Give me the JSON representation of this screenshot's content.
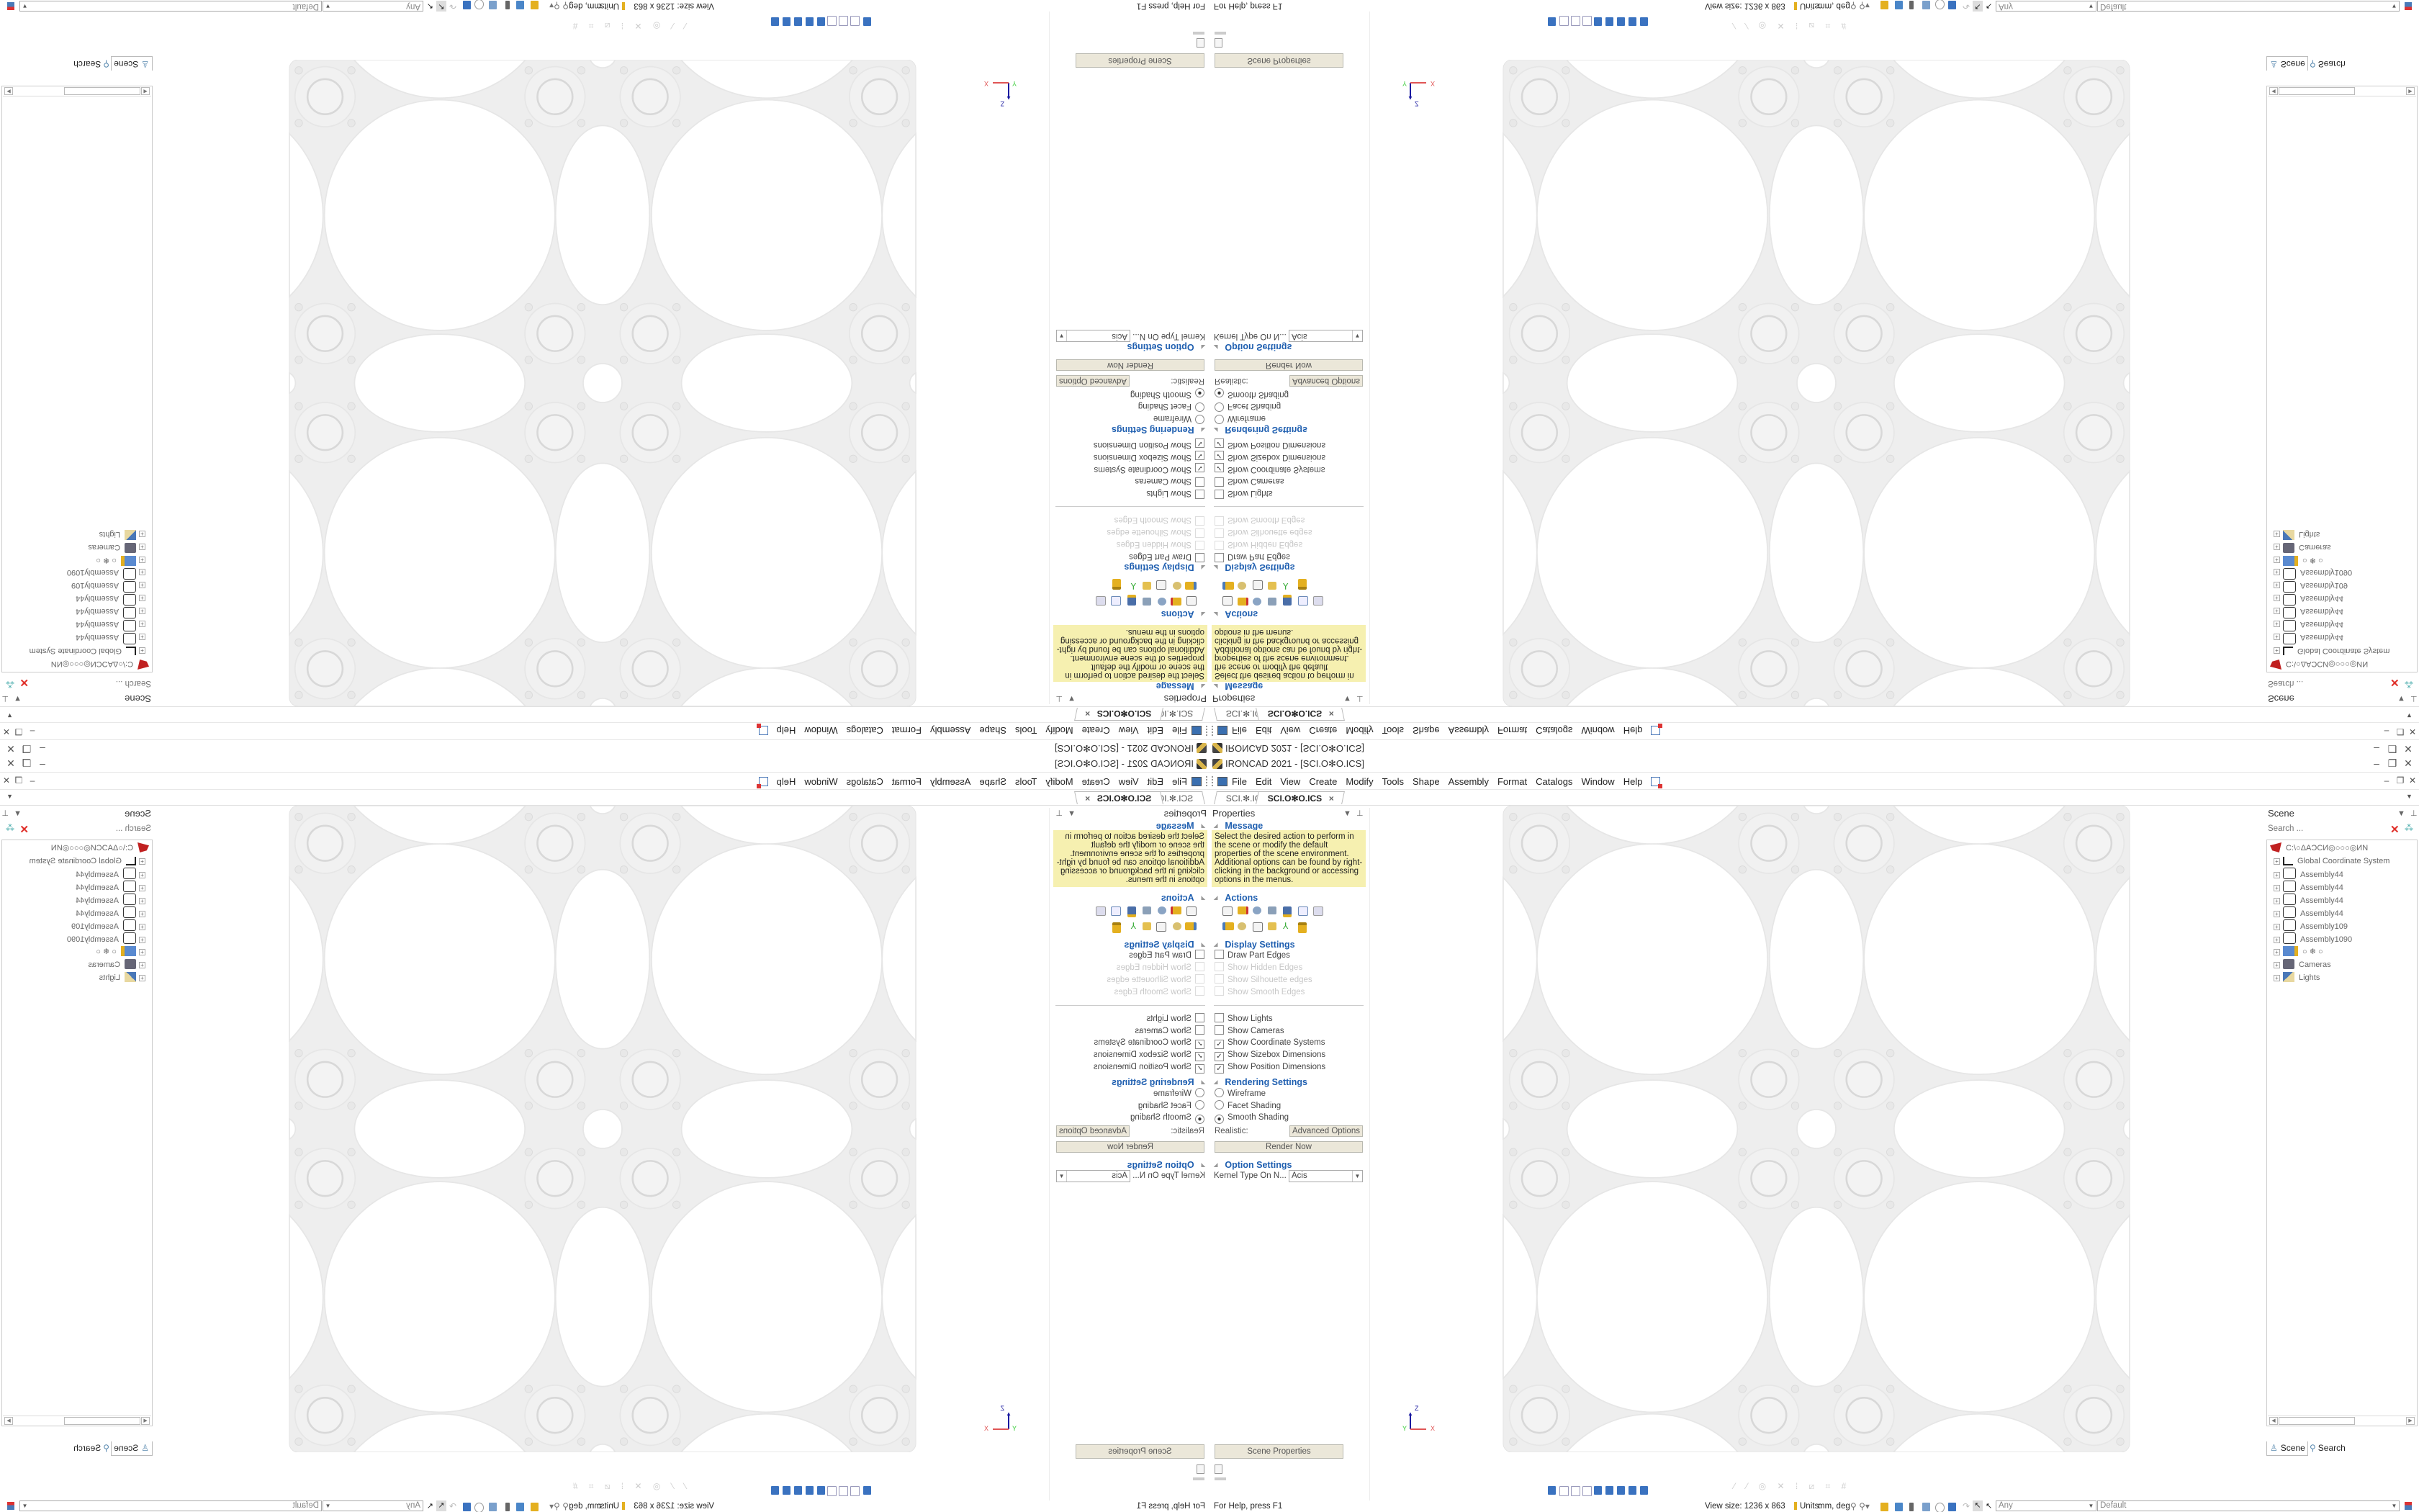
{
  "app": {
    "title": "IRONCAD 2021 - [SCI.O✻O.ICS]",
    "window_controls": [
      "–",
      "❐",
      "✕"
    ]
  },
  "menu": [
    "File",
    "Edit",
    "View",
    "Create",
    "Modify",
    "Tools",
    "Shape",
    "Assembly",
    "Format",
    "Catalogs",
    "Window",
    "Help"
  ],
  "tabs": [
    {
      "label": "SCI.✻.ICS",
      "active": false
    },
    {
      "label": "SCI.O✻O.ICS",
      "active": true,
      "close": "×"
    }
  ],
  "properties": {
    "title": "Properties",
    "message_header": "Message",
    "message": "Select the desired action to perform in the scene or modify the default properties of the scene environment. Additional options can be found by right-clicking in the background or accessing options in the menus.",
    "actions_header": "Actions",
    "display_header": "Display Settings",
    "display_options": [
      {
        "label": "Draw Part Edges",
        "checked": false,
        "disabled": false
      },
      {
        "label": "Show Hidden Edges",
        "checked": false,
        "disabled": true
      },
      {
        "label": "Show Silhouette edges",
        "checked": false,
        "disabled": true
      },
      {
        "label": "Show Smooth Edges",
        "checked": false,
        "disabled": true
      }
    ],
    "show_options": [
      {
        "label": "Show Lights",
        "checked": false
      },
      {
        "label": "Show Cameras",
        "checked": false
      },
      {
        "label": "Show Coordinate Systems",
        "checked": true
      },
      {
        "label": "Show Sizebox Dimensions",
        "checked": true
      },
      {
        "label": "Show Position Dimensions",
        "checked": true
      }
    ],
    "rendering_header": "Rendering Settings",
    "rendering_modes": [
      {
        "label": "Wireframe",
        "selected": false
      },
      {
        "label": "Facet Shading",
        "selected": false
      },
      {
        "label": "Smooth Shading",
        "selected": true
      }
    ],
    "realistic_label": "Realistic:",
    "advanced_options": "Advanced Options",
    "render_now": "Render Now",
    "option_header": "Option Settings",
    "kernel_label": "Kernel Type On N...",
    "kernel_value": "Acis",
    "scene_properties": "Scene Properties"
  },
  "scene": {
    "title": "Scene",
    "search_placeholder": "Search ...",
    "tree": [
      {
        "label": "C:\\○ΔΑϽϹИ◎○○○◎ИΝ",
        "icon": "scene-root-icon"
      },
      {
        "label": "Global Coordinate System",
        "icon": "coordinate-system-icon"
      },
      {
        "label": "Assembly44",
        "icon": "assembly-icon"
      },
      {
        "label": "Assembly44",
        "icon": "assembly-icon"
      },
      {
        "label": "Assembly44",
        "icon": "assembly-icon"
      },
      {
        "label": "Assembly44",
        "icon": "assembly-icon"
      },
      {
        "label": "Assembly109",
        "icon": "assembly-icon"
      },
      {
        "label": "Assembly1090",
        "icon": "assembly-icon"
      },
      {
        "label": "○ ❄ ○",
        "icon": "part-icon"
      },
      {
        "label": "Cameras",
        "icon": "camera-icon"
      },
      {
        "label": "Lights",
        "icon": "light-icon"
      }
    ],
    "tab_scene": "Scene",
    "tab_search": "Search"
  },
  "viewport": {
    "axis_x": "X",
    "axis_y": "Y",
    "axis_z": "Z"
  },
  "status": {
    "help": "For Help, press F1",
    "view_size": "View size: 1236 x 863",
    "units_label": "Units:",
    "units_value": "mm, deg",
    "filter_value": "Any",
    "style_value": "Default"
  },
  "colors": {
    "section_header": "#1f5fb0",
    "message_bg": "#f6f0b0",
    "button_bg": "#ebe7d9",
    "model_surface": "#eeeeee"
  }
}
